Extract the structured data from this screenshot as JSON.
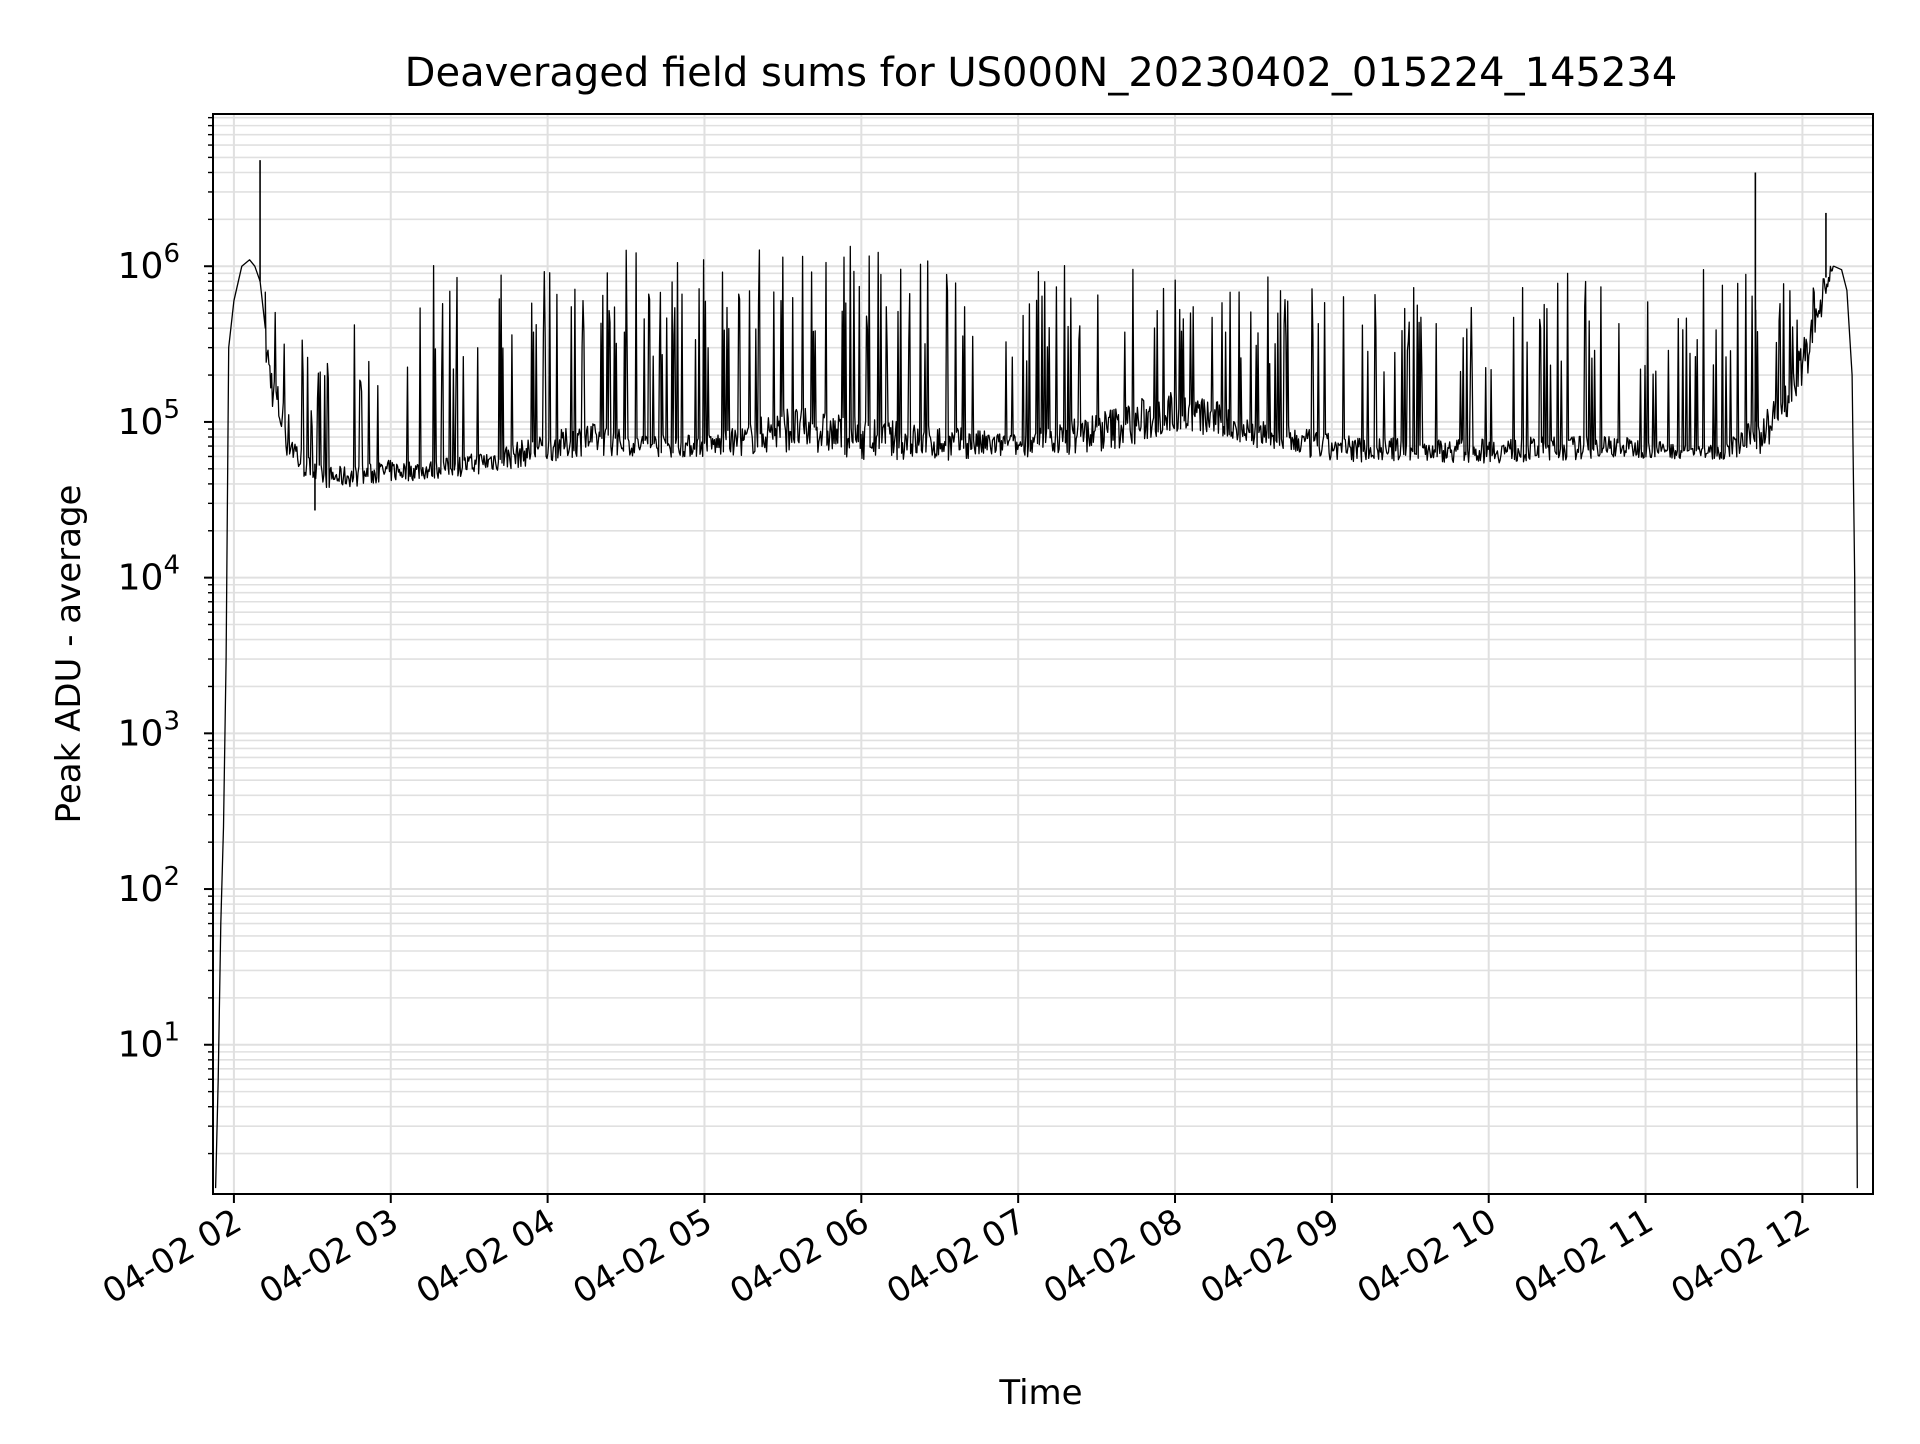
{
  "chart_data": {
    "type": "line",
    "title": "Deaveraged field sums for US000N_20230402_015224_145234",
    "xlabel": "Time",
    "ylabel": "Peak ADU - average",
    "y_scale": "log",
    "ylim": [
      1.1,
      9500000
    ],
    "xlim": [
      "2023-04-02 01:52",
      "2023-04-02 12:27"
    ],
    "x_tick_labels": [
      "04-02 02",
      "04-02 03",
      "04-02 04",
      "04-02 05",
      "04-02 06",
      "04-02 07",
      "04-02 08",
      "04-02 09",
      "04-02 10",
      "04-02 11",
      "04-02 12"
    ],
    "x_tick_values": [
      "2023-04-02 02:00",
      "2023-04-02 03:00",
      "2023-04-02 04:00",
      "2023-04-02 05:00",
      "2023-04-02 06:00",
      "2023-04-02 07:00",
      "2023-04-02 08:00",
      "2023-04-02 09:00",
      "2023-04-02 10:00",
      "2023-04-02 11:00",
      "2023-04-02 12:00"
    ],
    "y_tick_values": [
      10,
      100,
      1000,
      10000,
      100000,
      1000000
    ],
    "y_tick_labels": [
      {
        "base": "10",
        "exp": "1"
      },
      {
        "base": "10",
        "exp": "2"
      },
      {
        "base": "10",
        "exp": "3"
      },
      {
        "base": "10",
        "exp": "4"
      },
      {
        "base": "10",
        "exp": "5"
      },
      {
        "base": "10",
        "exp": "6"
      }
    ],
    "grid": true,
    "line_color": "#000000",
    "grid_color": "#e0e0e0",
    "series": [
      {
        "x": [
          "2023-04-02 01:53",
          "2023-04-02 01:54",
          "2023-04-02 01:55",
          "2023-04-02 01:56",
          "2023-04-02 01:57",
          "2023-04-02 01:58",
          "2023-04-02 02:00",
          "2023-04-02 02:03",
          "2023-04-02 02:06",
          "2023-04-02 02:08",
          "2023-04-02 02:10",
          "2023-04-02 02:12",
          "2023-04-02 02:15",
          "2023-04-02 02:20",
          "2023-04-02 02:25",
          "2023-04-02 02:30",
          "2023-04-02 02:35",
          "2023-04-02 02:40",
          "2023-04-02 02:50",
          "2023-04-02 03:00",
          "2023-04-02 03:15",
          "2023-04-02 03:30",
          "2023-04-02 03:45",
          "2023-04-02 04:00",
          "2023-04-02 04:15",
          "2023-04-02 04:30",
          "2023-04-02 04:45",
          "2023-04-02 05:00",
          "2023-04-02 05:15",
          "2023-04-02 05:30",
          "2023-04-02 05:45",
          "2023-04-02 06:00",
          "2023-04-02 06:30",
          "2023-04-02 07:00",
          "2023-04-02 07:30",
          "2023-04-02 07:45",
          "2023-04-02 08:00",
          "2023-04-02 08:15",
          "2023-04-02 08:30",
          "2023-04-02 09:00",
          "2023-04-02 09:30",
          "2023-04-02 10:00",
          "2023-04-02 10:30",
          "2023-04-02 10:45",
          "2023-04-02 11:00",
          "2023-04-02 11:15",
          "2023-04-02 11:30",
          "2023-04-02 11:45",
          "2023-04-02 11:52",
          "2023-04-02 11:58",
          "2023-04-02 12:04",
          "2023-04-02 12:08",
          "2023-04-02 12:12",
          "2023-04-02 12:15",
          "2023-04-02 12:17",
          "2023-04-02 12:19",
          "2023-04-02 12:20",
          "2023-04-02 12:21"
        ],
        "y": [
          1.2,
          6,
          60,
          250,
          3000,
          300000,
          600000,
          1000000,
          1100000,
          1000000,
          800000,
          400000,
          200000,
          120000,
          70000,
          55000,
          50000,
          50000,
          52000,
          55000,
          55000,
          60000,
          70000,
          80000,
          95000,
          85000,
          80000,
          80000,
          90000,
          120000,
          110000,
          100000,
          90000,
          80000,
          110000,
          130000,
          150000,
          130000,
          100000,
          80000,
          75000,
          75000,
          78000,
          80000,
          75000,
          70000,
          70000,
          110000,
          150000,
          250000,
          450000,
          800000,
          1000000,
          950000,
          700000,
          200000,
          10000,
          1.2
        ],
        "envelope_max": [
          1.2,
          6,
          60,
          250,
          3000,
          300000,
          600000,
          1000000,
          1100000,
          1000000,
          800000,
          700000,
          800000,
          600000,
          500000,
          200000,
          250000,
          300000,
          900000,
          1000000,
          1100000,
          1150000,
          1150000,
          1200000,
          1300000,
          1400000,
          1400000,
          1400000,
          1500000,
          1500000,
          1450000,
          1400000,
          1300000,
          1100000,
          1100000,
          1100000,
          1300000,
          1000000,
          900000,
          700000,
          800000,
          900000,
          1100000,
          900000,
          700000,
          900000,
          1100000,
          1300000,
          900000,
          700000,
          800000,
          1000000,
          1000000,
          950000,
          700000,
          200000,
          10000,
          1.2
        ],
        "envelope_min": [
          1.2,
          6,
          60,
          250,
          3000,
          300000,
          600000,
          1000000,
          1100000,
          1000000,
          800000,
          200000,
          100000,
          50000,
          40000,
          38000,
          35000,
          35000,
          36000,
          38000,
          40000,
          42000,
          45000,
          50000,
          55000,
          55000,
          55000,
          55000,
          55000,
          55000,
          55000,
          50000,
          50000,
          55000,
          55000,
          60000,
          75000,
          70000,
          60000,
          50000,
          52000,
          50000,
          52000,
          55000,
          55000,
          55000,
          55000,
          55000,
          70000,
          120000,
          200000,
          500000,
          1000000,
          950000,
          700000,
          200000,
          10000,
          1.2
        ]
      }
    ],
    "spikes": [
      {
        "x": "2023-04-02 02:10",
        "y": 4800000
      },
      {
        "x": "2023-04-02 02:31",
        "y": 27000
      },
      {
        "x": "2023-04-02 11:42",
        "y": 4000000
      },
      {
        "x": "2023-04-02 12:09",
        "y": 2200000
      }
    ]
  }
}
